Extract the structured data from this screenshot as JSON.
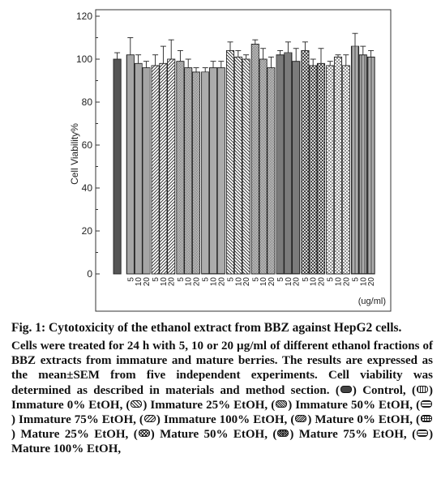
{
  "chart_data": {
    "type": "bar",
    "ylabel": "Cell Viability%",
    "xunit": "(ug/ml)",
    "ylim": [
      0,
      120
    ],
    "yticks": [
      0,
      20,
      40,
      60,
      80,
      100,
      120
    ],
    "groups": [
      {
        "name": "Control",
        "labels": [
          ""
        ],
        "values": [
          100
        ],
        "errors": [
          3
        ],
        "pattern": "solid"
      },
      {
        "name": "Immature 0% EtOH",
        "labels": [
          "5",
          "10",
          "20"
        ],
        "values": [
          102,
          98,
          96
        ],
        "errors": [
          8,
          4,
          3
        ],
        "pattern": "vlines"
      },
      {
        "name": "Immature 25% EtOH",
        "labels": [
          "5",
          "10",
          "20"
        ],
        "values": [
          97,
          98,
          100
        ],
        "errors": [
          5,
          8,
          9
        ],
        "pattern": "diag"
      },
      {
        "name": "Immature 50% EtOH",
        "labels": [
          "5",
          "10",
          "20"
        ],
        "values": [
          99,
          96,
          94
        ],
        "errors": [
          5,
          4,
          2
        ],
        "pattern": "diag2"
      },
      {
        "name": "Immature 75% EtOH",
        "labels": [
          "5",
          "10",
          "20"
        ],
        "values": [
          94,
          96,
          96
        ],
        "errors": [
          2,
          3,
          3
        ],
        "pattern": "hlines"
      },
      {
        "name": "Immature 100% EtOH",
        "labels": [
          "5",
          "10",
          "20"
        ],
        "values": [
          104,
          101,
          100
        ],
        "errors": [
          4,
          3,
          2
        ],
        "pattern": "backdiag"
      },
      {
        "name": "Mature 0% EtOH",
        "labels": [
          "5",
          "10",
          "20"
        ],
        "values": [
          107,
          100,
          96
        ],
        "errors": [
          2,
          5,
          5
        ],
        "pattern": "backdiag2"
      },
      {
        "name": "Mature 25% EtOH",
        "labels": [
          "5",
          "10",
          "20"
        ],
        "values": [
          102,
          103,
          99
        ],
        "errors": [
          2,
          5,
          6
        ],
        "pattern": "grid"
      },
      {
        "name": "Mature 50% EtOH",
        "labels": [
          "5",
          "10",
          "20"
        ],
        "values": [
          104,
          97,
          98
        ],
        "errors": [
          4,
          3,
          7
        ],
        "pattern": "cross"
      },
      {
        "name": "Mature 75% EtOH",
        "labels": [
          "5",
          "10",
          "20"
        ],
        "values": [
          97,
          101,
          97
        ],
        "errors": [
          2,
          1,
          5
        ],
        "pattern": "crossfine"
      },
      {
        "name": "Mature 100% EtOH",
        "labels": [
          "5",
          "10",
          "20"
        ],
        "values": [
          106,
          102,
          101
        ],
        "errors": [
          6,
          4,
          3
        ],
        "pattern": "hgrid"
      }
    ]
  },
  "caption": {
    "title": "Fig. 1: Cytotoxicity of the ethanol extract from BBZ against HepG2 cells.",
    "body_intro": "Cells were treated for 24 h with 5, 10 or 20 µg/ml of different ethanol fractions of BBZ extracts from immature and mature berries. The results are expressed as the mean±SEM from five independent experiments. Cell viability was determined as described in materials and method section.",
    "legend": [
      "Control,",
      "Immature 0% EtOH,",
      "Immature 25% EtOH,",
      "Immature 50% EtOH,",
      "Immature 75% EtOH,",
      "Immature 100% EtOH,",
      "Mature 0% EtOH,",
      "Mature 25% EtOH,",
      "Mature 50% EtOH,",
      "Mature 75% EtOH,",
      "Mature 100% EtOH,"
    ]
  }
}
